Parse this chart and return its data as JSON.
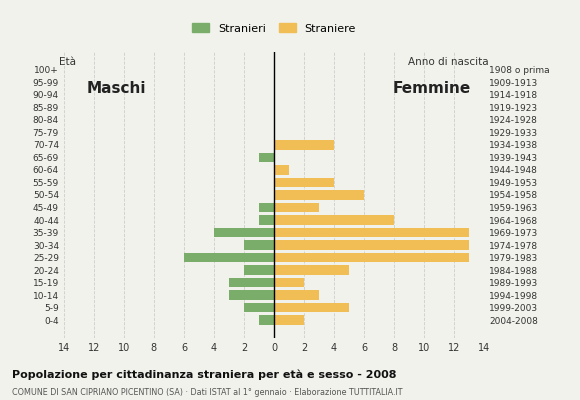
{
  "age_groups": [
    "100+",
    "95-99",
    "90-94",
    "85-89",
    "80-84",
    "75-79",
    "70-74",
    "65-69",
    "60-64",
    "55-59",
    "50-54",
    "45-49",
    "40-44",
    "35-39",
    "30-34",
    "25-29",
    "20-24",
    "15-19",
    "10-14",
    "5-9",
    "0-4"
  ],
  "birth_years": [
    "1908 o prima",
    "1909-1913",
    "1914-1918",
    "1919-1923",
    "1924-1928",
    "1929-1933",
    "1934-1938",
    "1939-1943",
    "1944-1948",
    "1949-1953",
    "1954-1958",
    "1959-1963",
    "1964-1968",
    "1969-1973",
    "1974-1978",
    "1979-1983",
    "1984-1988",
    "1989-1993",
    "1994-1998",
    "1999-2003",
    "2004-2008"
  ],
  "males": [
    0,
    0,
    0,
    0,
    0,
    0,
    0,
    1,
    0,
    0,
    0,
    1,
    1,
    4,
    2,
    6,
    2,
    3,
    3,
    2,
    1
  ],
  "females": [
    0,
    0,
    0,
    0,
    0,
    0,
    4,
    0,
    1,
    4,
    6,
    3,
    8,
    13,
    13,
    13,
    5,
    2,
    3,
    5,
    2
  ],
  "male_color": "#7aad6a",
  "female_color": "#f0be55",
  "background_color": "#f2f2ed",
  "title": "Popolazione per cittadinanza straniera per età e sesso - 2008",
  "subtitle": "COMUNE DI SAN CIPRIANO PICENTINO (SA) · Dati ISTAT al 1° gennaio · Elaborazione TUTTITALIA.IT",
  "legend_male": "Stranieri",
  "legend_female": "Straniere",
  "label_maschi": "Maschi",
  "label_femmine": "Femmine",
  "label_eta": "Età",
  "label_anno": "Anno di nascita",
  "xlim": 14,
  "grid_color": "#cccccc",
  "grid_xticks": [
    -14,
    -12,
    -10,
    -8,
    -6,
    -4,
    -2,
    0,
    2,
    4,
    6,
    8,
    10,
    12,
    14
  ]
}
